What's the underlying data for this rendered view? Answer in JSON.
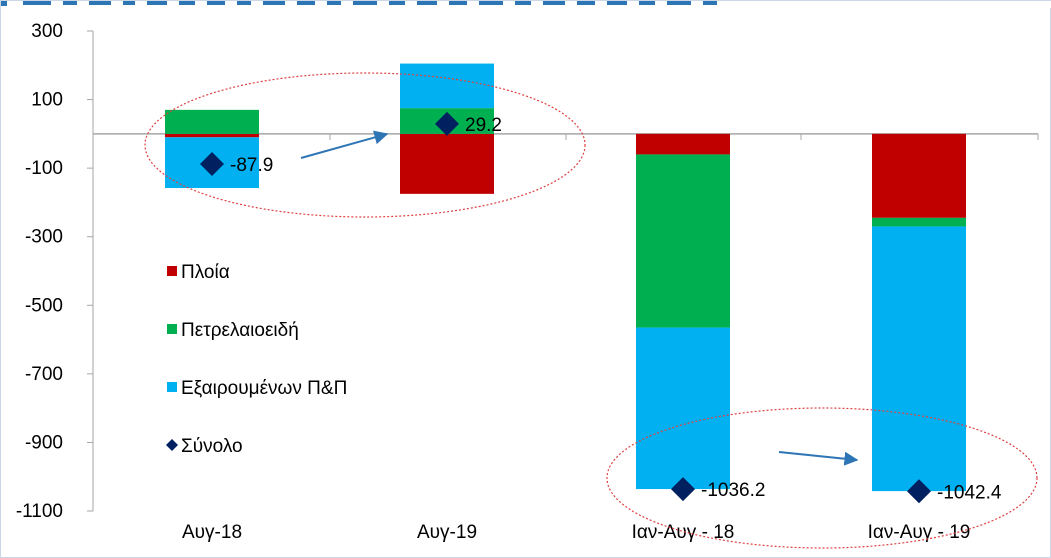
{
  "chart_data": {
    "type": "bar",
    "stacked": true,
    "categories": [
      "Αυγ-18",
      "Αυγ-19",
      "Ιαν-Αυγ - 18",
      "Ιαν-Αυγ - 19"
    ],
    "series": [
      {
        "name": "Πλοία",
        "color": "#c00000",
        "values": [
          -10,
          -175,
          -60,
          -245
        ]
      },
      {
        "name": "Πετρελαιοειδή",
        "color": "#00b050",
        "values": [
          70,
          75,
          -505,
          -25
        ]
      },
      {
        "name": "Εξαιρουμένων Π&Π",
        "color": "#00b0f0",
        "values": [
          -148,
          130,
          -471,
          -772
        ]
      }
    ],
    "total": {
      "name": "Σύνολο",
      "color": "#002060",
      "marker": "diamond",
      "values": [
        -87.9,
        29.2,
        -1036.2,
        -1042.4
      ],
      "labels": [
        "-87.9",
        "29.2",
        "-1036.2",
        "-1042.4"
      ]
    },
    "ylim": [
      -1100,
      300
    ],
    "yticks": [
      "300",
      "100",
      "-100",
      "-300",
      "-500",
      "-700",
      "-900",
      "-1100"
    ],
    "legend_position": "left-inside",
    "grid": false,
    "annotations": {
      "ellipses": [
        "Αυγ-18 to Αυγ-19",
        "Ιαν-Αυγ - 18 to Ιαν-Αυγ - 19"
      ],
      "ellipse_color": "#e04040",
      "arrow_color": "#2e75b6"
    }
  }
}
